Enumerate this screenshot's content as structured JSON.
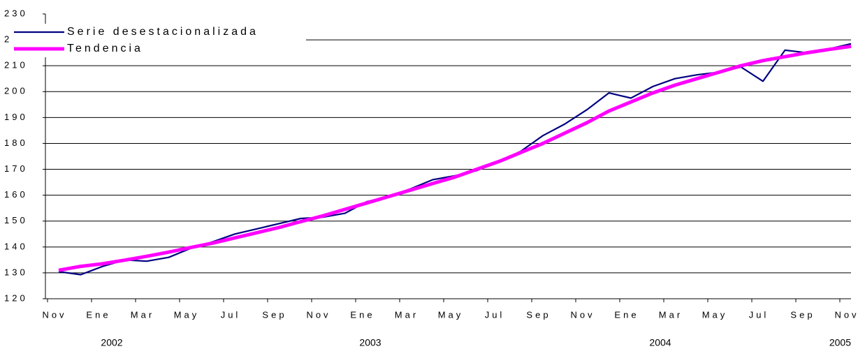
{
  "chart_data": {
    "type": "line",
    "categories": [
      "Nov",
      null,
      "Ene",
      null,
      "Mar",
      null,
      "May",
      null,
      "Jul",
      null,
      "Sep",
      null,
      "Nov",
      null,
      "Ene",
      null,
      "Mar",
      null,
      "May",
      null,
      "Jul",
      null,
      "Sep",
      null,
      "Nov",
      null,
      "Ene",
      null,
      "Mar",
      null,
      "May",
      null,
      "Jul",
      null,
      "Sep",
      null,
      "Nov"
    ],
    "annotations": [
      "2002",
      "2003",
      "2004",
      "2005"
    ],
    "series": [
      {
        "name": "Serie desestacionalizada",
        "color": "#000080",
        "values": [
          130.5,
          129.3,
          132.5,
          135,
          134.5,
          136,
          139.5,
          142,
          145,
          147,
          149,
          151,
          151.5,
          153,
          157.5,
          159.5,
          162.5,
          166,
          167.5,
          169.5,
          173,
          177,
          183,
          187.5,
          193,
          199.5,
          197.5,
          202,
          205,
          206.5,
          207.5,
          209.5,
          204,
          216,
          215,
          216.5,
          218.5
        ]
      },
      {
        "name": "Tendencia",
        "color": "#ff00ff",
        "values": [
          131,
          132.5,
          133.5,
          134.9,
          136.4,
          138,
          139.8,
          141.5,
          143.5,
          145.5,
          147.5,
          149.8,
          152,
          154.5,
          157,
          159.5,
          162,
          164.5,
          167,
          170,
          173,
          176.5,
          180,
          184,
          188,
          192.5,
          196,
          199.5,
          202.5,
          205,
          207.5,
          210,
          212,
          213.5,
          215,
          216.3,
          217.5
        ]
      }
    ],
    "ylim": [
      120,
      230
    ],
    "yticks": [
      120,
      130,
      140,
      150,
      160,
      170,
      180,
      190,
      200,
      210,
      220,
      230
    ],
    "grid": true
  }
}
